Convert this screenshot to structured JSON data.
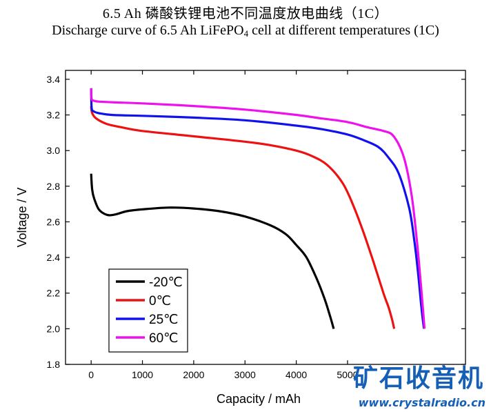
{
  "header": {
    "title_cn": "6.5 Ah 磷酸铁锂电池不同温度放电曲线（1C）",
    "title_en_main": "Discharge curve of 6.5 Ah LiFePO",
    "title_en_sub": "4",
    "title_en_tail": " cell at different temperatures (1C)"
  },
  "watermark": {
    "brand": "矿石收音机",
    "url": "www.crystalradio.cn",
    "color": "#1560b6"
  },
  "chart_data": {
    "type": "line",
    "title": "Discharge curve of 6.5 Ah LiFePO4 cell at different temperatures (1C)",
    "xlabel": "Capacity / mAh",
    "ylabel": "Voltage / V",
    "xlim": [
      -500,
      7300
    ],
    "ylim": [
      1.8,
      3.45
    ],
    "xticks": [
      0,
      1000,
      2000,
      3000,
      4000,
      5000
    ],
    "yticks": [
      1.8,
      2.0,
      2.2,
      2.4,
      2.6,
      2.8,
      3.0,
      3.2,
      3.4
    ],
    "xtick_labels": [
      "0",
      "1000",
      "2000",
      "3000",
      "4000",
      "5000"
    ],
    "ytick_labels": [
      "1.8",
      "2.0",
      "2.2",
      "2.4",
      "2.6",
      "2.8",
      "3.0",
      "3.2",
      "3.4"
    ],
    "grid": false,
    "legend_position": "bottom-left",
    "series": [
      {
        "name": "-20℃",
        "color": "#000000",
        "x": [
          0,
          20,
          60,
          150,
          300,
          450,
          700,
          1000,
          1500,
          2000,
          2500,
          3000,
          3500,
          3800,
          4000,
          4200,
          4400,
          4550,
          4650,
          4730
        ],
        "y": [
          2.87,
          2.78,
          2.73,
          2.67,
          2.64,
          2.64,
          2.66,
          2.67,
          2.68,
          2.675,
          2.66,
          2.63,
          2.58,
          2.53,
          2.47,
          2.4,
          2.28,
          2.17,
          2.08,
          2.0
        ]
      },
      {
        "name": "0℃",
        "color": "#ee1111",
        "x": [
          0,
          20,
          100,
          300,
          600,
          1000,
          2000,
          3000,
          3500,
          4000,
          4300,
          4600,
          4900,
          5100,
          5300,
          5500,
          5700,
          5800,
          5870,
          5910
        ],
        "y": [
          3.25,
          3.21,
          3.18,
          3.15,
          3.13,
          3.11,
          3.08,
          3.05,
          3.03,
          3.0,
          2.97,
          2.92,
          2.82,
          2.7,
          2.55,
          2.38,
          2.2,
          2.12,
          2.05,
          2.0
        ]
      },
      {
        "name": "25℃",
        "color": "#1111ee",
        "x": [
          0,
          10,
          50,
          150,
          400,
          1000,
          2000,
          3000,
          4000,
          4500,
          5000,
          5300,
          5600,
          5800,
          6000,
          6200,
          6300,
          6380,
          6440,
          6490
        ],
        "y": [
          3.35,
          3.24,
          3.22,
          3.21,
          3.2,
          3.195,
          3.185,
          3.17,
          3.14,
          3.12,
          3.09,
          3.06,
          3.02,
          2.96,
          2.87,
          2.68,
          2.5,
          2.3,
          2.12,
          2.0
        ]
      },
      {
        "name": "60℃",
        "color": "#ee11ee",
        "x": [
          0,
          10,
          50,
          150,
          500,
          1000,
          2000,
          3000,
          4000,
          4500,
          5000,
          5400,
          5700,
          5900,
          6100,
          6250,
          6350,
          6430,
          6480,
          6500
        ],
        "y": [
          3.35,
          3.29,
          3.28,
          3.275,
          3.27,
          3.265,
          3.25,
          3.23,
          3.2,
          3.18,
          3.16,
          3.13,
          3.11,
          3.08,
          2.96,
          2.75,
          2.5,
          2.25,
          2.08,
          2.0
        ]
      }
    ]
  }
}
